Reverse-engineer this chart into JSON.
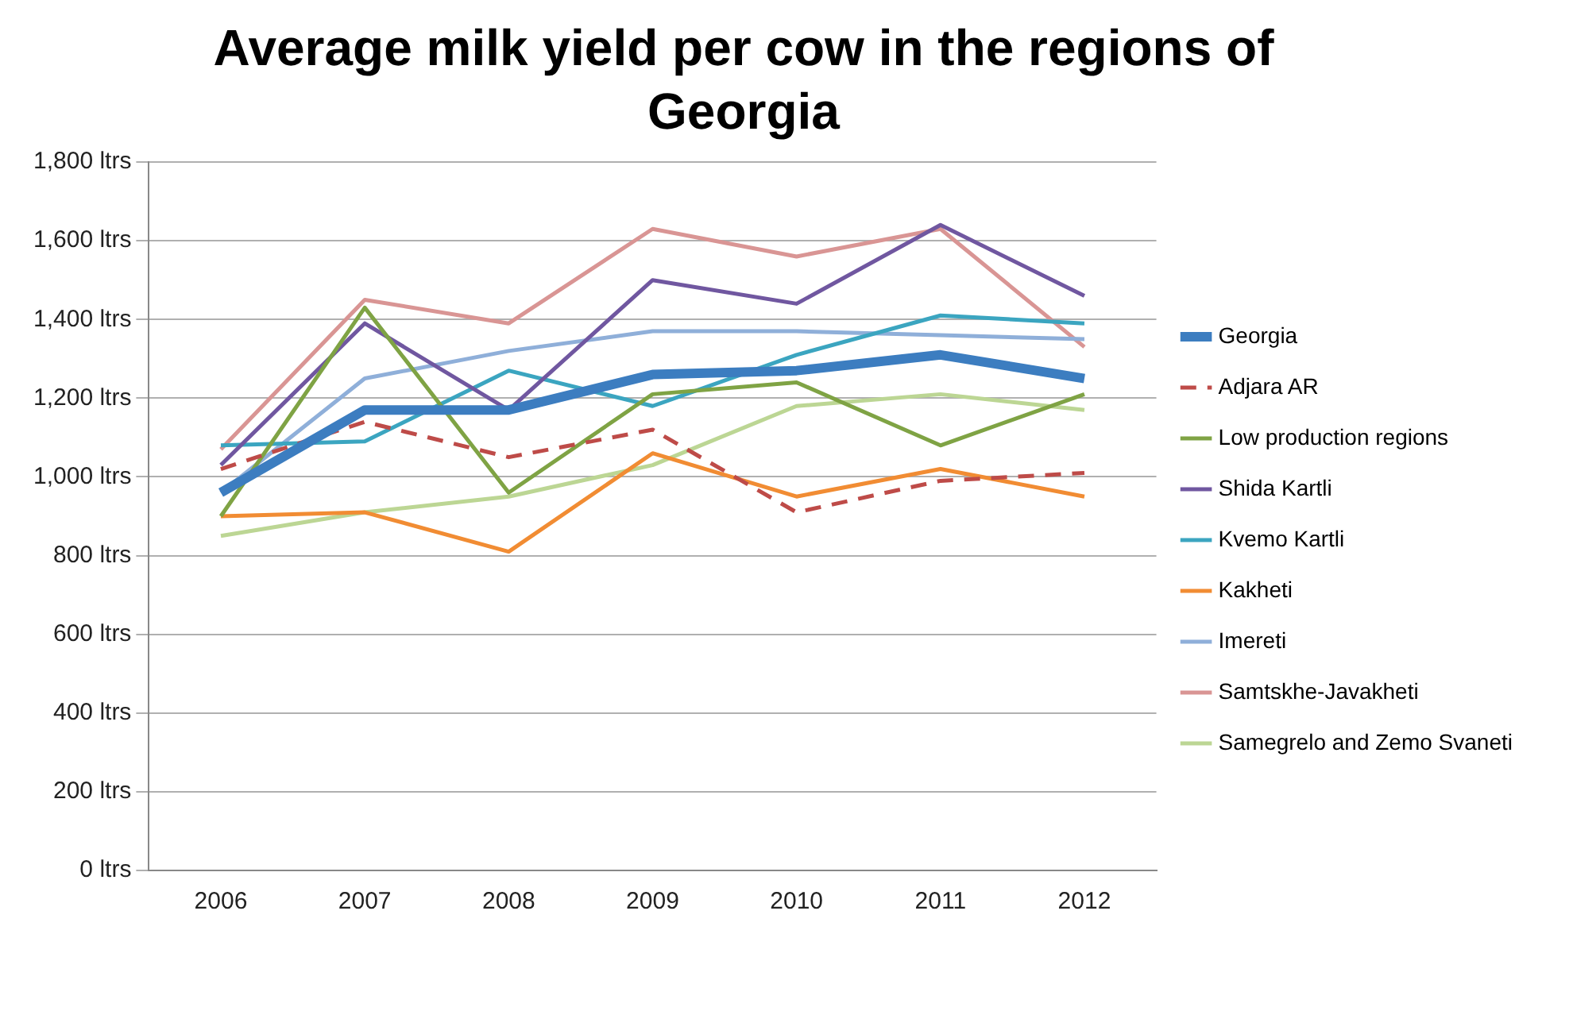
{
  "chart_data": {
    "type": "line",
    "title": "Average milk yield per cow in the regions of Georgia",
    "categories": [
      "2006",
      "2007",
      "2008",
      "2009",
      "2010",
      "2011",
      "2012"
    ],
    "series": [
      {
        "name": "Georgia",
        "color": "#3c7dc0",
        "values": [
          960,
          1170,
          1170,
          1260,
          1270,
          1310,
          1250
        ]
      },
      {
        "name": "Adjara AR",
        "color": "#be4b48",
        "line_style": "dashed",
        "values": [
          1020,
          1140,
          1050,
          1120,
          910,
          990,
          1010
        ]
      },
      {
        "name": "Low production regions",
        "color": "#7fa344",
        "values": [
          900,
          1430,
          960,
          1210,
          1240,
          1080,
          1210
        ]
      },
      {
        "name": "Shida Kartli",
        "color": "#7057a0",
        "values": [
          1030,
          1390,
          1170,
          1500,
          1440,
          1640,
          1460
        ]
      },
      {
        "name": "Kvemo Kartli",
        "color": "#3ba5c0",
        "values": [
          1080,
          1090,
          1270,
          1180,
          1310,
          1410,
          1390
        ]
      },
      {
        "name": "Kakheti",
        "color": "#f18c33",
        "values": [
          900,
          910,
          810,
          1060,
          950,
          1020,
          950
        ]
      },
      {
        "name": "Imereti",
        "color": "#8fafd9",
        "values": [
          960,
          1250,
          1320,
          1370,
          1370,
          1360,
          1350
        ]
      },
      {
        "name": "Samtskhe-Javakheti",
        "color": "#d99594",
        "values": [
          1070,
          1450,
          1390,
          1630,
          1560,
          1630,
          1330
        ]
      },
      {
        "name": "Samegrelo and Zemo Svaneti",
        "color": "#bcd694",
        "values": [
          850,
          910,
          950,
          1030,
          1180,
          1210,
          1170
        ]
      }
    ],
    "ylim": [
      0,
      1800
    ],
    "yticks": [
      {
        "value": 0,
        "label": "0 ltrs"
      },
      {
        "value": 200,
        "label": "200 ltrs"
      },
      {
        "value": 400,
        "label": "400 ltrs"
      },
      {
        "value": 600,
        "label": "600 ltrs"
      },
      {
        "value": 800,
        "label": "800 ltrs"
      },
      {
        "value": 1000,
        "label": "1,000 ltrs"
      },
      {
        "value": 1200,
        "label": "1,200 ltrs"
      },
      {
        "value": 1400,
        "label": "1,400 ltrs"
      },
      {
        "value": 1600,
        "label": "1,600 ltrs"
      },
      {
        "value": 1800,
        "label": "1,800 ltrs"
      }
    ],
    "grid": "y",
    "legend": "right",
    "marker": "none",
    "line_style": "solid"
  }
}
